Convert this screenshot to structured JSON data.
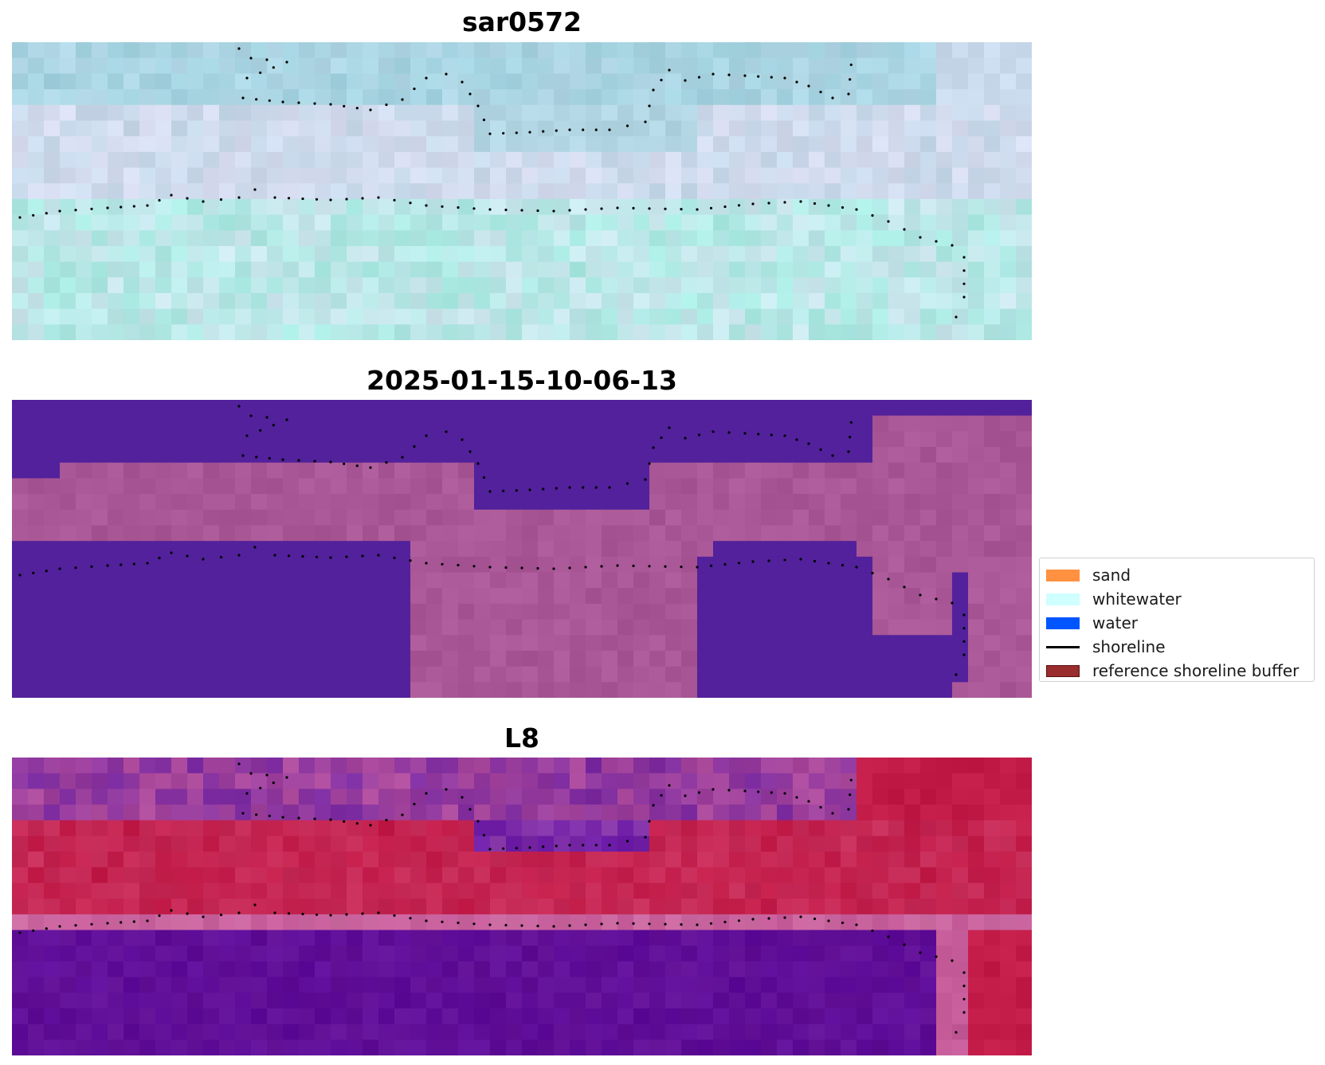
{
  "panels": [
    {
      "title": "sar0572"
    },
    {
      "title": "2025-01-15-10-06-13"
    },
    {
      "title": "L8"
    }
  ],
  "legend": {
    "items": [
      {
        "label": "sand",
        "kind": "patch",
        "color": "#ff9140"
      },
      {
        "label": "whitewater",
        "kind": "patch",
        "color": "#cfffff"
      },
      {
        "label": "water",
        "kind": "patch",
        "color": "#0055ff"
      },
      {
        "label": "shoreline",
        "kind": "line",
        "color": "#000000"
      },
      {
        "label": "reference shoreline buffer",
        "kind": "patch",
        "color": "#9a2d2d"
      }
    ]
  },
  "colors": {
    "sar_pale_blue": "#a3d3e0",
    "sar_lavender": "#d8dcf0",
    "sar_aqua": "#a8eae2",
    "class_purple": "#52219b",
    "class_mauve": "#a95796",
    "l8_purple": "#611095",
    "l8_crimson": "#c21b48",
    "l8_pink": "#c65b9a",
    "shoreline_dots": "#000000"
  }
}
